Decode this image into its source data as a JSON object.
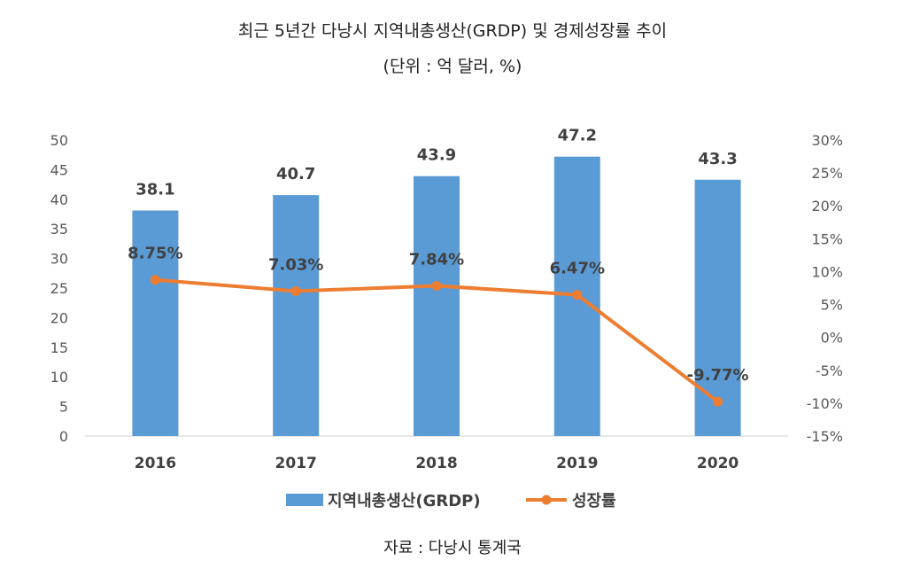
{
  "chart_data": {
    "type": "bar+line",
    "title": "최근 5년간 다낭시 지역내총생산(GRDP) 및 경제성장률 추이",
    "subtitle": "(단위 : 억 달러, %)",
    "categories": [
      "2016",
      "2017",
      "2018",
      "2019",
      "2020"
    ],
    "series": [
      {
        "name": "지역내총생산(GRDP)",
        "type": "bar",
        "axis": "left",
        "color": "#5b9bd5",
        "values": [
          38.1,
          40.7,
          43.9,
          47.2,
          43.3
        ],
        "labels": [
          "38.1",
          "40.7",
          "43.9",
          "47.2",
          "43.3"
        ]
      },
      {
        "name": "성장률",
        "type": "line",
        "axis": "right",
        "color": "#ed7d31",
        "values": [
          8.75,
          7.03,
          7.84,
          6.47,
          -9.77
        ],
        "labels": [
          "8.75%",
          "7.03%",
          "7.84%",
          "6.47%",
          "-9.77%"
        ]
      }
    ],
    "y_left": {
      "min": 0,
      "max": 50,
      "ticks": [
        "0",
        "5",
        "10",
        "15",
        "20",
        "25",
        "30",
        "35",
        "40",
        "45",
        "50"
      ]
    },
    "y_right": {
      "min": -15,
      "max": 30,
      "ticks": [
        "-15%",
        "-10%",
        "-5%",
        "0%",
        "5%",
        "10%",
        "15%",
        "20%",
        "25%",
        "30%"
      ]
    },
    "grid": false,
    "legend": "bottom-center",
    "source": "자료 : 다낭시 통계국"
  }
}
